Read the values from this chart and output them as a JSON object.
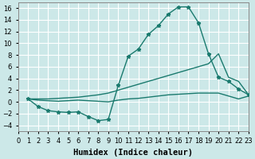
{
  "line1_x": [
    1,
    2,
    3,
    4,
    5,
    6,
    7,
    8,
    9,
    10,
    11,
    12,
    13,
    14,
    15,
    16,
    17,
    18,
    19,
    20,
    21,
    22,
    23
  ],
  "line1_y": [
    0.5,
    -0.8,
    -1.5,
    -1.7,
    -1.8,
    -1.7,
    -2.5,
    -3.2,
    -3.0,
    2.8,
    7.8,
    9.0,
    11.5,
    13.0,
    15.0,
    16.2,
    16.2,
    13.5,
    8.2,
    4.2,
    3.5,
    2.2,
    1.2
  ],
  "line2_x": [
    1,
    2,
    3,
    4,
    5,
    6,
    7,
    8,
    9,
    10,
    11,
    12,
    13,
    14,
    15,
    16,
    17,
    18,
    19,
    20,
    21,
    22,
    23
  ],
  "line2_y": [
    0.5,
    0.3,
    0.2,
    0.1,
    0.2,
    0.3,
    0.2,
    0.1,
    0.0,
    0.3,
    0.5,
    0.6,
    0.8,
    1.0,
    1.2,
    1.3,
    1.4,
    1.5,
    1.5,
    1.5,
    1.0,
    0.5,
    1.0
  ],
  "line3_x": [
    1,
    2,
    3,
    4,
    5,
    6,
    7,
    8,
    9,
    10,
    11,
    12,
    13,
    14,
    15,
    16,
    17,
    18,
    19,
    20,
    21,
    22,
    23
  ],
  "line3_y": [
    0.5,
    0.5,
    0.5,
    0.6,
    0.7,
    0.8,
    1.0,
    1.2,
    1.5,
    2.0,
    2.5,
    3.0,
    3.5,
    4.0,
    4.5,
    5.0,
    5.5,
    6.0,
    6.5,
    8.2,
    4.2,
    3.5,
    1.2
  ],
  "color": "#1a7a6e",
  "bg_color": "#cce8e8",
  "grid_color": "#ffffff",
  "xlabel": "Humidex (Indice chaleur)",
  "ylim": [
    -5,
    17
  ],
  "xlim": [
    0,
    23
  ],
  "yticks": [
    -4,
    -2,
    0,
    2,
    4,
    6,
    8,
    10,
    12,
    14,
    16
  ],
  "xticks": [
    0,
    1,
    2,
    3,
    4,
    5,
    6,
    7,
    8,
    9,
    10,
    11,
    12,
    13,
    14,
    15,
    16,
    17,
    18,
    19,
    20,
    21,
    22,
    23
  ],
  "marker": "*",
  "linewidth": 1.0,
  "markersize": 3.5,
  "xlabel_fontsize": 7.5,
  "tick_fontsize": 6
}
